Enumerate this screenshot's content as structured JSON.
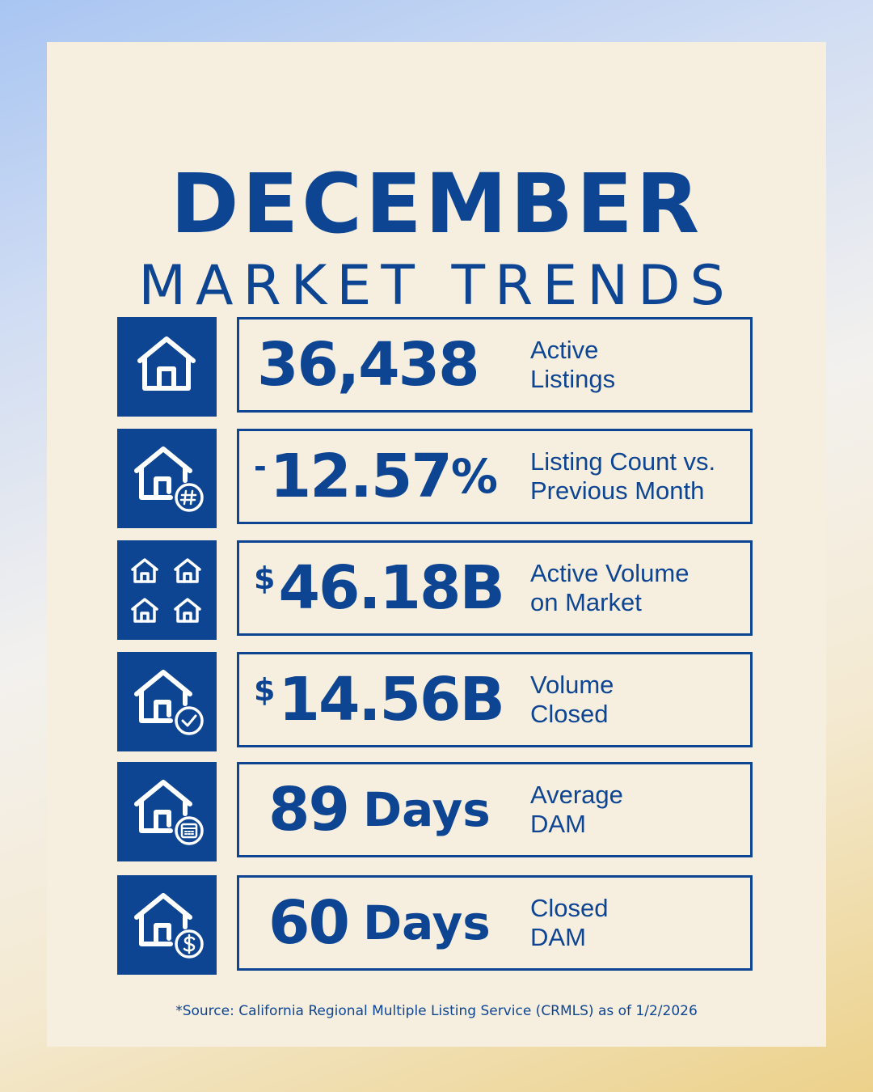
{
  "header": {
    "title": "DECEMBER",
    "subtitle": "MARKET TRENDS"
  },
  "colors": {
    "primary": "#0e4593",
    "card_background": "#f6efdf"
  },
  "stats": [
    {
      "icon": "house-icon",
      "prefix": "",
      "value": "36,438",
      "suffix": "",
      "unit": "",
      "label_line1": "Active",
      "label_line2": "Listings"
    },
    {
      "icon": "house-hash-icon",
      "prefix": "-",
      "value": "12.57",
      "suffix": "%",
      "unit": "",
      "label_line1": "Listing Count vs.",
      "label_line2": "Previous Month"
    },
    {
      "icon": "four-houses-icon",
      "prefix": "$",
      "value": "46.18B",
      "suffix": "",
      "unit": "",
      "label_line1": "Active Volume",
      "label_line2": "on Market"
    },
    {
      "icon": "house-check-icon",
      "prefix": "$",
      "value": "14.56B",
      "suffix": "",
      "unit": "",
      "label_line1": "Volume",
      "label_line2": "Closed"
    },
    {
      "icon": "house-calendar-icon",
      "prefix": "",
      "value": "89",
      "suffix": "",
      "unit": "Days",
      "label_line1": "Average",
      "label_line2": "DAM"
    },
    {
      "icon": "house-dollar-icon",
      "prefix": "",
      "value": "60",
      "suffix": "",
      "unit": "Days",
      "label_line1": "Closed",
      "label_line2": "DAM"
    }
  ],
  "footer": {
    "source": "*Source: California Regional Multiple Listing Service (CRMLS) as of 1/2/2026"
  }
}
